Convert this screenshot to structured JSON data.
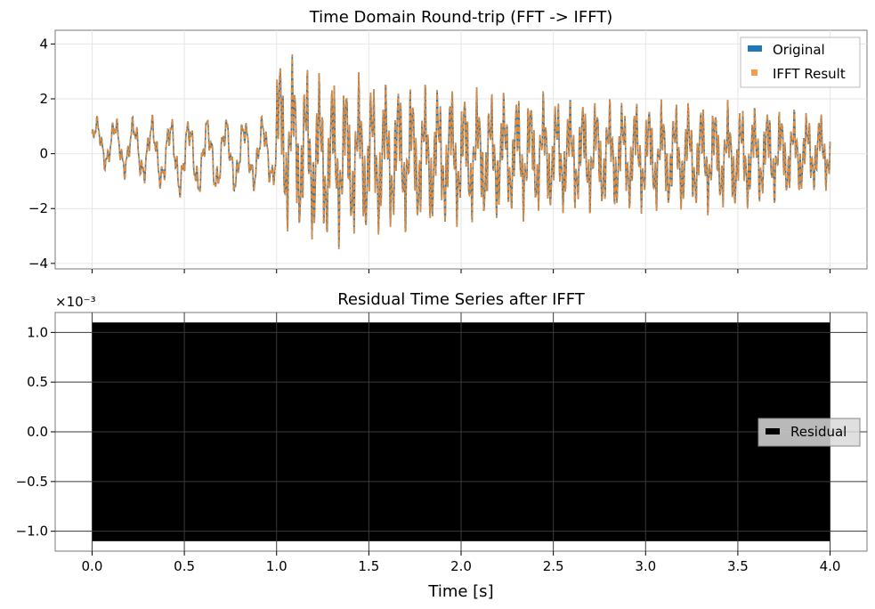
{
  "chart_data": [
    {
      "type": "line",
      "title": "Time Domain Round-trip (FFT -> IFFT)",
      "xlabel": "",
      "ylabel": "",
      "xlim": [
        -0.2,
        4.2
      ],
      "ylim": [
        -4.2,
        4.5
      ],
      "yticks": [
        -4,
        -2,
        0,
        2,
        4
      ],
      "yticklabels": [
        "−4",
        "−2",
        "0",
        "2",
        "4"
      ],
      "xticks": [
        0,
        0.5,
        1.0,
        1.5,
        2.0,
        2.5,
        3.0,
        3.5,
        4.0
      ],
      "grid": true,
      "legend_position": "top-right",
      "series": [
        {
          "name": "Original",
          "color": "#1f77b4",
          "linestyle": "solid"
        },
        {
          "name": "IFFT Result",
          "color": "#ff7f0e",
          "linestyle": "dashed"
        }
      ],
      "envelope": {
        "x": [
          0.0,
          0.5,
          0.99,
          1.0,
          1.25,
          1.5,
          2.0,
          2.5,
          3.0,
          3.5,
          4.0
        ],
        "max": [
          1.4,
          1.5,
          1.5,
          4.1,
          3.2,
          3.0,
          2.6,
          2.3,
          2.1,
          2.0,
          1.6
        ],
        "min": [
          -0.5,
          -1.8,
          -1.4,
          -3.0,
          -3.7,
          -3.3,
          -2.8,
          -2.4,
          -2.3,
          -2.3,
          -1.4
        ]
      }
    },
    {
      "type": "area",
      "title": "Residual Time Series after IFFT",
      "xlabel": "Time [s]",
      "ylabel": "",
      "scale_label": "×10⁻³",
      "xlim": [
        -0.2,
        4.2
      ],
      "ylim": [
        -1.2,
        1.2
      ],
      "yticks": [
        -1.0,
        -0.5,
        0.0,
        0.5,
        1.0
      ],
      "yticklabels": [
        "−1.0",
        "−0.5",
        "0.0",
        "0.5",
        "1.0"
      ],
      "xticks": [
        0,
        0.5,
        1.0,
        1.5,
        2.0,
        2.5,
        3.0,
        3.5,
        4.0
      ],
      "xticklabels": [
        "0.0",
        "0.5",
        "1.0",
        "1.5",
        "2.0",
        "2.5",
        "3.0",
        "3.5",
        "4.0"
      ],
      "grid": true,
      "legend_position": "center-right",
      "series": [
        {
          "name": "Residual",
          "color": "#000000",
          "x": [
            0.0,
            4.0
          ],
          "min": -1.1,
          "max": 1.1
        }
      ]
    }
  ]
}
